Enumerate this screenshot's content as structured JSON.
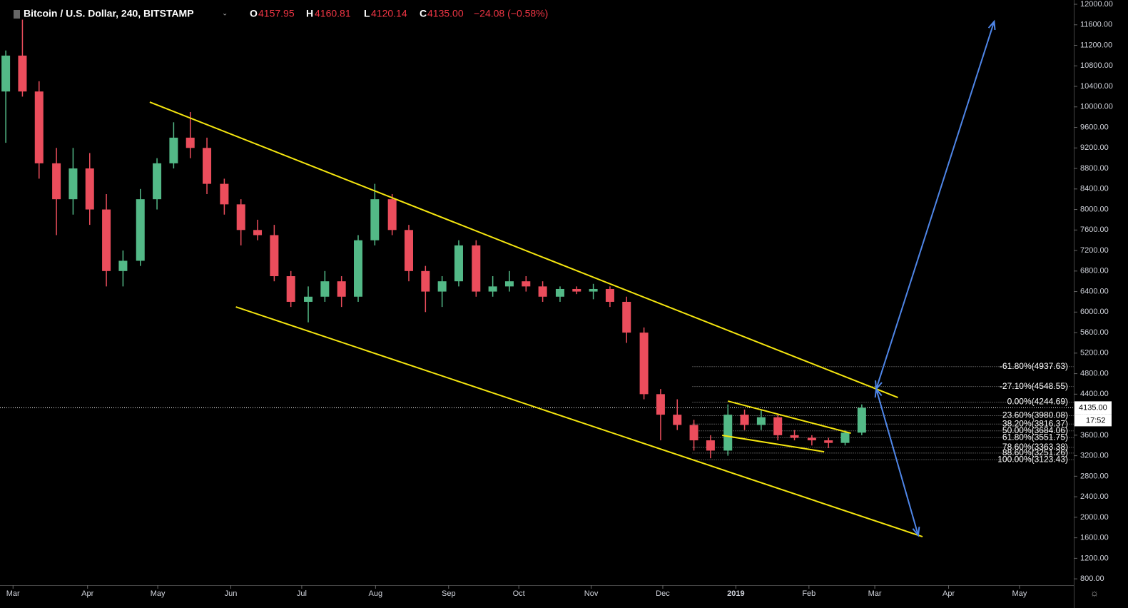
{
  "header": {
    "symbol": "Bitcoin / U.S. Dollar, 240, BITSTAMP",
    "o_label": "O",
    "o": "4157.95",
    "h_label": "H",
    "h": "4160.81",
    "l_label": "L",
    "l": "4120.14",
    "c_label": "C",
    "c": "4135.00",
    "change": "−24.08 (−0.58%)"
  },
  "chart_data": {
    "type": "candlestick",
    "grid": false,
    "up_color": "#53b987",
    "down_color": "#eb4d5c",
    "x": [
      -0.1,
      0.13,
      0.36,
      0.6,
      0.83,
      1.06,
      1.29,
      1.52,
      1.76,
      1.99,
      2.22,
      2.45,
      2.68,
      2.92,
      3.15,
      3.38,
      3.61,
      3.84,
      4.08,
      4.31,
      4.54,
      4.77,
      5.0,
      5.24,
      5.47,
      5.7,
      5.93,
      6.16,
      6.4,
      6.63,
      6.86,
      7.09,
      7.32,
      7.56,
      7.79,
      8.02,
      8.25,
      8.48,
      8.72,
      8.95,
      9.18,
      9.41,
      9.64,
      9.88,
      10.11,
      10.34,
      10.57,
      10.8,
      11.04,
      11.27,
      11.5,
      11.73
    ],
    "open": [
      10300,
      11000,
      10300,
      8900,
      8200,
      8800,
      8000,
      6800,
      7000,
      8200,
      8900,
      9400,
      9200,
      8500,
      8100,
      7600,
      7500,
      6700,
      6200,
      6300,
      6600,
      6300,
      7400,
      8200,
      7600,
      6800,
      6400,
      6600,
      7300,
      6400,
      6500,
      6600,
      6500,
      6300,
      6450,
      6400,
      6450,
      6200,
      5600,
      4400,
      4000,
      3800,
      3500,
      3300,
      4000,
      3800,
      3950,
      3600,
      3550,
      3500,
      3450,
      3650
    ],
    "high": [
      11100,
      11700,
      10500,
      9200,
      9200,
      9100,
      8300,
      7200,
      8400,
      9000,
      9700,
      9900,
      9400,
      8600,
      8200,
      7800,
      7700,
      6800,
      6500,
      6800,
      6700,
      7500,
      8500,
      8300,
      7700,
      6900,
      6700,
      7400,
      7400,
      6700,
      6800,
      6700,
      6600,
      6500,
      6500,
      6550,
      6500,
      6300,
      5700,
      4500,
      4300,
      3900,
      3600,
      4200,
      4100,
      4100,
      4000,
      3700,
      3600,
      3550,
      3700,
      4200
    ],
    "low": [
      9300,
      10200,
      8600,
      7500,
      7900,
      7700,
      6500,
      6500,
      6900,
      8000,
      8800,
      9000,
      8300,
      7900,
      7300,
      7400,
      6600,
      6100,
      5800,
      6200,
      6100,
      6200,
      7300,
      7500,
      6600,
      6000,
      6100,
      6500,
      6300,
      6300,
      6400,
      6400,
      6200,
      6200,
      6350,
      6250,
      6100,
      5400,
      4300,
      3500,
      3700,
      3300,
      3150,
      3200,
      3700,
      3700,
      3500,
      3500,
      3400,
      3350,
      3400,
      3600
    ],
    "close": [
      11000,
      10300,
      8900,
      8200,
      8800,
      8000,
      6800,
      7000,
      8200,
      8900,
      9400,
      9200,
      8500,
      8100,
      7600,
      7500,
      6700,
      6200,
      6300,
      6600,
      6300,
      7400,
      8200,
      7600,
      6800,
      6400,
      6600,
      7300,
      6400,
      6500,
      6600,
      6500,
      6300,
      6450,
      6400,
      6450,
      6200,
      5600,
      4400,
      4000,
      3800,
      3500,
      3300,
      4000,
      3800,
      3950,
      3600,
      3550,
      3500,
      3450,
      3650,
      4135
    ],
    "xlim": [
      -0.18,
      14.66
    ],
    "xticks": [
      {
        "value": 0,
        "label": "Mar"
      },
      {
        "value": 1.03,
        "label": "Apr"
      },
      {
        "value": 2.0,
        "label": "May"
      },
      {
        "value": 3.01,
        "label": "Jun"
      },
      {
        "value": 3.99,
        "label": "Jul"
      },
      {
        "value": 5.01,
        "label": "Aug"
      },
      {
        "value": 6.02,
        "label": "Sep"
      },
      {
        "value": 6.99,
        "label": "Oct"
      },
      {
        "value": 7.99,
        "label": "Nov"
      },
      {
        "value": 8.98,
        "label": "Dec"
      },
      {
        "value": 9.99,
        "label": "2019"
      },
      {
        "value": 11.0,
        "label": "Feb"
      },
      {
        "value": 11.91,
        "label": "Mar"
      },
      {
        "value": 12.93,
        "label": "Apr"
      },
      {
        "value": 13.91,
        "label": "May"
      }
    ],
    "ylim": [
      676.6,
      12083.5
    ],
    "yticks": [
      {
        "value": 800,
        "label": "800.00"
      },
      {
        "value": 1200,
        "label": "1200.00"
      },
      {
        "value": 1600,
        "label": "1600.00"
      },
      {
        "value": 2000,
        "label": "2000.00"
      },
      {
        "value": 2400,
        "label": "2400.00"
      },
      {
        "value": 2800,
        "label": "2800.00"
      },
      {
        "value": 3200,
        "label": "3200.00"
      },
      {
        "value": 3600,
        "label": "3600.00"
      },
      {
        "value": 4000,
        "label": "4000.00"
      },
      {
        "value": 4400,
        "label": "4400.00"
      },
      {
        "value": 4800,
        "label": "4800.00"
      },
      {
        "value": 5200,
        "label": "5200.00"
      },
      {
        "value": 5600,
        "label": "5600.00"
      },
      {
        "value": 6000,
        "label": "6000.00"
      },
      {
        "value": 6400,
        "label": "6400.00"
      },
      {
        "value": 6800,
        "label": "6800.00"
      },
      {
        "value": 7200,
        "label": "7200.00"
      },
      {
        "value": 7600,
        "label": "7600.00"
      },
      {
        "value": 8000,
        "label": "8000.00"
      },
      {
        "value": 8400,
        "label": "8400.00"
      },
      {
        "value": 8800,
        "label": "8800.00"
      },
      {
        "value": 9200,
        "label": "9200.00"
      },
      {
        "value": 9600,
        "label": "9600.00"
      },
      {
        "value": 10000,
        "label": "10000.00"
      },
      {
        "value": 10400,
        "label": "10400.00"
      },
      {
        "value": 10800,
        "label": "10800.00"
      },
      {
        "value": 11200,
        "label": "11200.00"
      },
      {
        "value": 11600,
        "label": "11600.00"
      },
      {
        "value": 12000,
        "label": "12000.00"
      }
    ],
    "fib_start": 9.39,
    "fib_levels": [
      {
        "value": 4937.63,
        "label": "-61.80%(4937.63)"
      },
      {
        "value": 4548.55,
        "label": "-27.10%(4548.55)"
      },
      {
        "value": 4244.69,
        "label": "0.00%(4244.69)"
      },
      {
        "value": 3980.08,
        "label": "23.60%(3980.08)"
      },
      {
        "value": 3816.37,
        "label": "38.20%(3816.37)"
      },
      {
        "value": 3684.06,
        "label": "50.00%(3684.06)"
      },
      {
        "value": 3551.75,
        "label": "61.80%(3551.75)"
      },
      {
        "value": 3363.38,
        "label": "78.60%(3363.38)"
      },
      {
        "value": 3251.26,
        "label": "88.60%(3251.26)"
      },
      {
        "value": 3123.43,
        "label": "100.00%(3123.43)"
      }
    ],
    "trendlines": [
      {
        "color": "#f5e60f",
        "x": [
          1.89,
          12.23
        ],
        "y": [
          10094,
          4334
        ]
      },
      {
        "color": "#f5e60f",
        "x": [
          3.08,
          12.57
        ],
        "y": [
          6101,
          1621
        ]
      },
      {
        "color": "#f5e60f",
        "x": [
          9.88,
          11.58
        ],
        "y": [
          4265,
          3639
        ]
      },
      {
        "color": "#f5e60f",
        "x": [
          9.8,
          11.21
        ],
        "y": [
          3597,
          3277
        ]
      }
    ],
    "arrows": [
      {
        "color": "#4f86e8",
        "x": [
          11.93,
          13.56
        ],
        "y": [
          4501,
          11666
        ]
      },
      {
        "color": "#4f86e8",
        "x": [
          11.93,
          12.51
        ],
        "y": [
          4501,
          1649
        ]
      }
    ],
    "last_price": {
      "value": 4135.0,
      "label": "4135.00"
    },
    "countdown": "17:52"
  }
}
